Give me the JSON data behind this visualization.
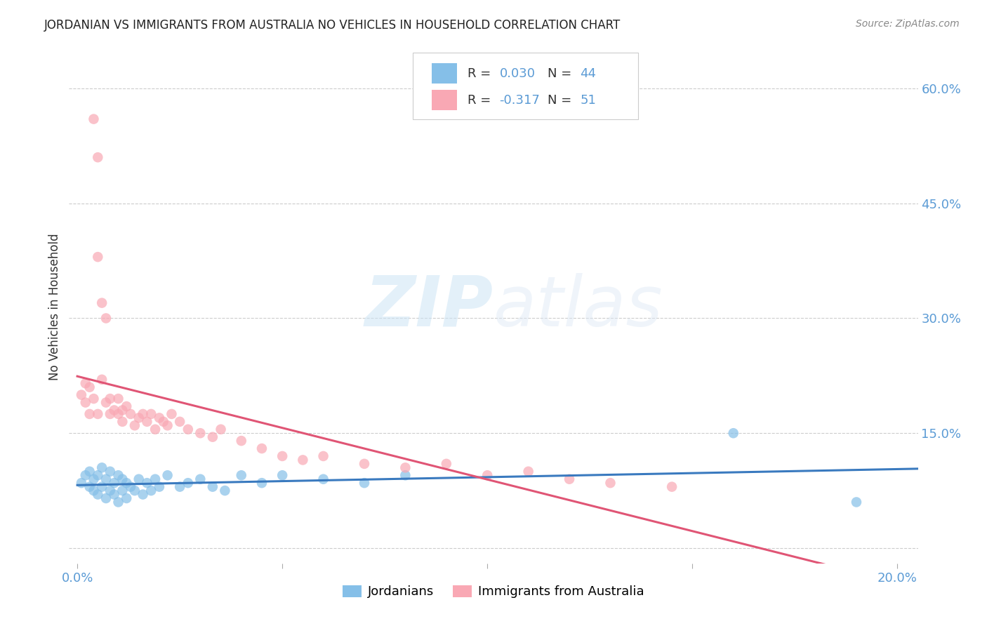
{
  "title": "JORDANIAN VS IMMIGRANTS FROM AUSTRALIA NO VEHICLES IN HOUSEHOLD CORRELATION CHART",
  "source": "Source: ZipAtlas.com",
  "ylabel_label": "No Vehicles in Household",
  "x_min": -0.002,
  "x_max": 0.205,
  "y_min": -0.02,
  "y_max": 0.65,
  "x_ticks": [
    0.0,
    0.05,
    0.1,
    0.15,
    0.2
  ],
  "x_tick_labels": [
    "0.0%",
    "",
    "",
    "",
    "20.0%"
  ],
  "y_ticks": [
    0.0,
    0.15,
    0.3,
    0.45,
    0.6
  ],
  "y_tick_labels": [
    "",
    "15.0%",
    "30.0%",
    "45.0%",
    "60.0%"
  ],
  "grid_color": "#cccccc",
  "background_color": "#ffffff",
  "blue_color": "#85bfe8",
  "blue_line_color": "#3a7abf",
  "pink_color": "#f9a8b4",
  "pink_line_color": "#e05575",
  "watermark_zip": "ZIP",
  "watermark_atlas": "atlas",
  "legend_label_blue": "Jordanians",
  "legend_label_pink": "Immigrants from Australia",
  "R_blue": 0.03,
  "N_blue": 44,
  "R_pink": -0.317,
  "N_pink": 51,
  "blue_x": [
    0.001,
    0.002,
    0.003,
    0.003,
    0.004,
    0.004,
    0.005,
    0.005,
    0.006,
    0.006,
    0.007,
    0.007,
    0.008,
    0.008,
    0.009,
    0.009,
    0.01,
    0.01,
    0.011,
    0.011,
    0.012,
    0.012,
    0.013,
    0.014,
    0.015,
    0.016,
    0.017,
    0.018,
    0.019,
    0.02,
    0.022,
    0.025,
    0.027,
    0.03,
    0.033,
    0.036,
    0.04,
    0.045,
    0.05,
    0.06,
    0.07,
    0.08,
    0.16,
    0.19
  ],
  "blue_y": [
    0.085,
    0.095,
    0.08,
    0.1,
    0.075,
    0.09,
    0.07,
    0.095,
    0.08,
    0.105,
    0.065,
    0.09,
    0.075,
    0.1,
    0.07,
    0.085,
    0.06,
    0.095,
    0.075,
    0.09,
    0.065,
    0.085,
    0.08,
    0.075,
    0.09,
    0.07,
    0.085,
    0.075,
    0.09,
    0.08,
    0.095,
    0.08,
    0.085,
    0.09,
    0.08,
    0.075,
    0.095,
    0.085,
    0.095,
    0.09,
    0.085,
    0.095,
    0.15,
    0.06
  ],
  "pink_x": [
    0.001,
    0.002,
    0.002,
    0.003,
    0.003,
    0.004,
    0.004,
    0.005,
    0.005,
    0.005,
    0.006,
    0.006,
    0.007,
    0.007,
    0.008,
    0.008,
    0.009,
    0.01,
    0.01,
    0.011,
    0.011,
    0.012,
    0.013,
    0.014,
    0.015,
    0.016,
    0.017,
    0.018,
    0.019,
    0.02,
    0.021,
    0.022,
    0.023,
    0.025,
    0.027,
    0.03,
    0.033,
    0.035,
    0.04,
    0.045,
    0.05,
    0.055,
    0.06,
    0.07,
    0.08,
    0.09,
    0.1,
    0.11,
    0.12,
    0.13,
    0.145
  ],
  "pink_y": [
    0.2,
    0.215,
    0.19,
    0.21,
    0.175,
    0.56,
    0.195,
    0.51,
    0.175,
    0.38,
    0.32,
    0.22,
    0.3,
    0.19,
    0.195,
    0.175,
    0.18,
    0.195,
    0.175,
    0.18,
    0.165,
    0.185,
    0.175,
    0.16,
    0.17,
    0.175,
    0.165,
    0.175,
    0.155,
    0.17,
    0.165,
    0.16,
    0.175,
    0.165,
    0.155,
    0.15,
    0.145,
    0.155,
    0.14,
    0.13,
    0.12,
    0.115,
    0.12,
    0.11,
    0.105,
    0.11,
    0.095,
    0.1,
    0.09,
    0.085,
    0.08
  ]
}
